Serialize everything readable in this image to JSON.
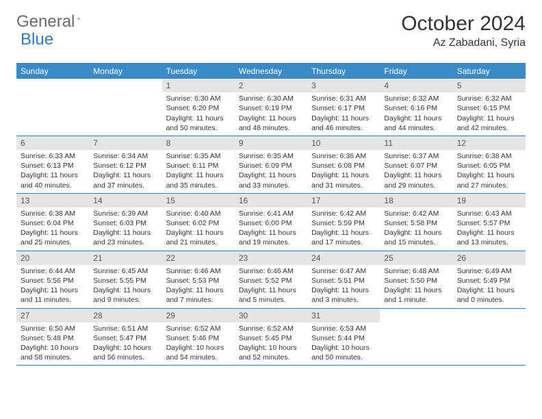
{
  "logo": {
    "text1": "General",
    "text2": "Blue"
  },
  "title": "October 2024",
  "location": "Az Zabadani, Syria",
  "colors": {
    "header_bg": "#3a8ac7",
    "header_text": "#ffffff",
    "border": "#2f7bbf",
    "daynum_bg": "#e5e5e5",
    "body_text": "#333333",
    "logo_gray": "#6a6a6a",
    "logo_blue": "#2f7bbf"
  },
  "dayNames": [
    "Sunday",
    "Monday",
    "Tuesday",
    "Wednesday",
    "Thursday",
    "Friday",
    "Saturday"
  ],
  "weeks": [
    [
      {
        "num": "",
        "sunrise": "",
        "sunset": "",
        "daylight": "",
        "empty": true
      },
      {
        "num": "",
        "sunrise": "",
        "sunset": "",
        "daylight": "",
        "empty": true
      },
      {
        "num": "1",
        "sunrise": "Sunrise: 6:30 AM",
        "sunset": "Sunset: 6:20 PM",
        "daylight": "Daylight: 11 hours and 50 minutes."
      },
      {
        "num": "2",
        "sunrise": "Sunrise: 6:30 AM",
        "sunset": "Sunset: 6:19 PM",
        "daylight": "Daylight: 11 hours and 48 minutes."
      },
      {
        "num": "3",
        "sunrise": "Sunrise: 6:31 AM",
        "sunset": "Sunset: 6:17 PM",
        "daylight": "Daylight: 11 hours and 46 minutes."
      },
      {
        "num": "4",
        "sunrise": "Sunrise: 6:32 AM",
        "sunset": "Sunset: 6:16 PM",
        "daylight": "Daylight: 11 hours and 44 minutes."
      },
      {
        "num": "5",
        "sunrise": "Sunrise: 6:32 AM",
        "sunset": "Sunset: 6:15 PM",
        "daylight": "Daylight: 11 hours and 42 minutes."
      }
    ],
    [
      {
        "num": "6",
        "sunrise": "Sunrise: 6:33 AM",
        "sunset": "Sunset: 6:13 PM",
        "daylight": "Daylight: 11 hours and 40 minutes."
      },
      {
        "num": "7",
        "sunrise": "Sunrise: 6:34 AM",
        "sunset": "Sunset: 6:12 PM",
        "daylight": "Daylight: 11 hours and 37 minutes."
      },
      {
        "num": "8",
        "sunrise": "Sunrise: 6:35 AM",
        "sunset": "Sunset: 6:11 PM",
        "daylight": "Daylight: 11 hours and 35 minutes."
      },
      {
        "num": "9",
        "sunrise": "Sunrise: 6:35 AM",
        "sunset": "Sunset: 6:09 PM",
        "daylight": "Daylight: 11 hours and 33 minutes."
      },
      {
        "num": "10",
        "sunrise": "Sunrise: 6:36 AM",
        "sunset": "Sunset: 6:08 PM",
        "daylight": "Daylight: 11 hours and 31 minutes."
      },
      {
        "num": "11",
        "sunrise": "Sunrise: 6:37 AM",
        "sunset": "Sunset: 6:07 PM",
        "daylight": "Daylight: 11 hours and 29 minutes."
      },
      {
        "num": "12",
        "sunrise": "Sunrise: 6:38 AM",
        "sunset": "Sunset: 6:05 PM",
        "daylight": "Daylight: 11 hours and 27 minutes."
      }
    ],
    [
      {
        "num": "13",
        "sunrise": "Sunrise: 6:38 AM",
        "sunset": "Sunset: 6:04 PM",
        "daylight": "Daylight: 11 hours and 25 minutes."
      },
      {
        "num": "14",
        "sunrise": "Sunrise: 6:39 AM",
        "sunset": "Sunset: 6:03 PM",
        "daylight": "Daylight: 11 hours and 23 minutes."
      },
      {
        "num": "15",
        "sunrise": "Sunrise: 6:40 AM",
        "sunset": "Sunset: 6:02 PM",
        "daylight": "Daylight: 11 hours and 21 minutes."
      },
      {
        "num": "16",
        "sunrise": "Sunrise: 6:41 AM",
        "sunset": "Sunset: 6:00 PM",
        "daylight": "Daylight: 11 hours and 19 minutes."
      },
      {
        "num": "17",
        "sunrise": "Sunrise: 6:42 AM",
        "sunset": "Sunset: 5:59 PM",
        "daylight": "Daylight: 11 hours and 17 minutes."
      },
      {
        "num": "18",
        "sunrise": "Sunrise: 6:42 AM",
        "sunset": "Sunset: 5:58 PM",
        "daylight": "Daylight: 11 hours and 15 minutes."
      },
      {
        "num": "19",
        "sunrise": "Sunrise: 6:43 AM",
        "sunset": "Sunset: 5:57 PM",
        "daylight": "Daylight: 11 hours and 13 minutes."
      }
    ],
    [
      {
        "num": "20",
        "sunrise": "Sunrise: 6:44 AM",
        "sunset": "Sunset: 5:56 PM",
        "daylight": "Daylight: 11 hours and 11 minutes."
      },
      {
        "num": "21",
        "sunrise": "Sunrise: 6:45 AM",
        "sunset": "Sunset: 5:55 PM",
        "daylight": "Daylight: 11 hours and 9 minutes."
      },
      {
        "num": "22",
        "sunrise": "Sunrise: 6:46 AM",
        "sunset": "Sunset: 5:53 PM",
        "daylight": "Daylight: 11 hours and 7 minutes."
      },
      {
        "num": "23",
        "sunrise": "Sunrise: 6:46 AM",
        "sunset": "Sunset: 5:52 PM",
        "daylight": "Daylight: 11 hours and 5 minutes."
      },
      {
        "num": "24",
        "sunrise": "Sunrise: 6:47 AM",
        "sunset": "Sunset: 5:51 PM",
        "daylight": "Daylight: 11 hours and 3 minutes."
      },
      {
        "num": "25",
        "sunrise": "Sunrise: 6:48 AM",
        "sunset": "Sunset: 5:50 PM",
        "daylight": "Daylight: 11 hours and 1 minute."
      },
      {
        "num": "26",
        "sunrise": "Sunrise: 6:49 AM",
        "sunset": "Sunset: 5:49 PM",
        "daylight": "Daylight: 11 hours and 0 minutes."
      }
    ],
    [
      {
        "num": "27",
        "sunrise": "Sunrise: 6:50 AM",
        "sunset": "Sunset: 5:48 PM",
        "daylight": "Daylight: 10 hours and 58 minutes."
      },
      {
        "num": "28",
        "sunrise": "Sunrise: 6:51 AM",
        "sunset": "Sunset: 5:47 PM",
        "daylight": "Daylight: 10 hours and 56 minutes."
      },
      {
        "num": "29",
        "sunrise": "Sunrise: 6:52 AM",
        "sunset": "Sunset: 5:46 PM",
        "daylight": "Daylight: 10 hours and 54 minutes."
      },
      {
        "num": "30",
        "sunrise": "Sunrise: 6:52 AM",
        "sunset": "Sunset: 5:45 PM",
        "daylight": "Daylight: 10 hours and 52 minutes."
      },
      {
        "num": "31",
        "sunrise": "Sunrise: 6:53 AM",
        "sunset": "Sunset: 5:44 PM",
        "daylight": "Daylight: 10 hours and 50 minutes."
      },
      {
        "num": "",
        "sunrise": "",
        "sunset": "",
        "daylight": "",
        "empty": true
      },
      {
        "num": "",
        "sunrise": "",
        "sunset": "",
        "daylight": "",
        "empty": true
      }
    ]
  ]
}
